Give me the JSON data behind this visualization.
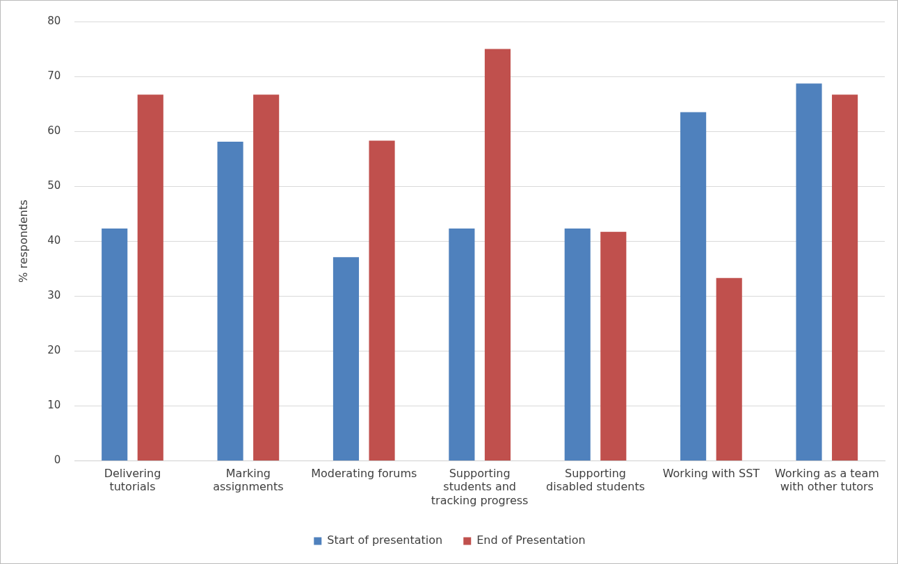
{
  "chart_data": {
    "type": "bar",
    "ylabel": "% respondents",
    "categories": [
      "Delivering tutorials",
      "Marking assignments",
      "Moderating forums",
      "Supporting students and tracking progress",
      "Supporting disabled students",
      "Working with SST",
      "Working as a team with other tutors"
    ],
    "series": [
      {
        "name": "Start of presentation",
        "color": "#4f81bd",
        "values": [
          42.3,
          58.1,
          37.1,
          42.3,
          42.3,
          63.5,
          68.7
        ]
      },
      {
        "name": "End of Presentation",
        "color": "#c0504d",
        "values": [
          66.7,
          66.7,
          58.3,
          75,
          41.7,
          33.3,
          66.7
        ]
      }
    ],
    "ylim": [
      0,
      80
    ],
    "yticks": [
      0,
      10,
      20,
      30,
      40,
      50,
      60,
      70,
      80
    ],
    "grid": "y",
    "legend": "bottom"
  }
}
